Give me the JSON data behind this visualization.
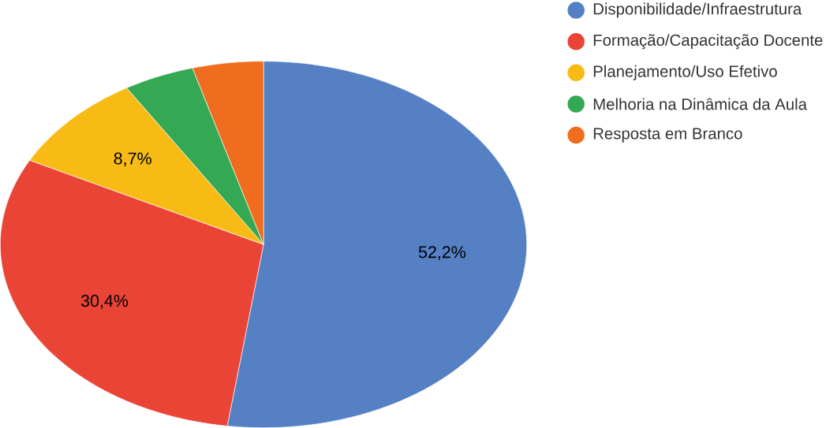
{
  "chart_data": {
    "type": "pie",
    "categories": [
      "Disponibilidade/Infraestrutura",
      "Formação/Capacitação Docente",
      "Planejamento/Uso Efetivo",
      "Melhoria na Dinâmica da Aula",
      "Resposta em Branco"
    ],
    "values": [
      52.2,
      30.4,
      8.7,
      4.35,
      4.35
    ],
    "value_labels": [
      "52,2%",
      "30,4%",
      "8,7%",
      null,
      null
    ],
    "colors": [
      "#5580c4",
      "#e94435",
      "#f8bb16",
      "#35a853",
      "#f06c1e"
    ],
    "legend": "top right"
  }
}
